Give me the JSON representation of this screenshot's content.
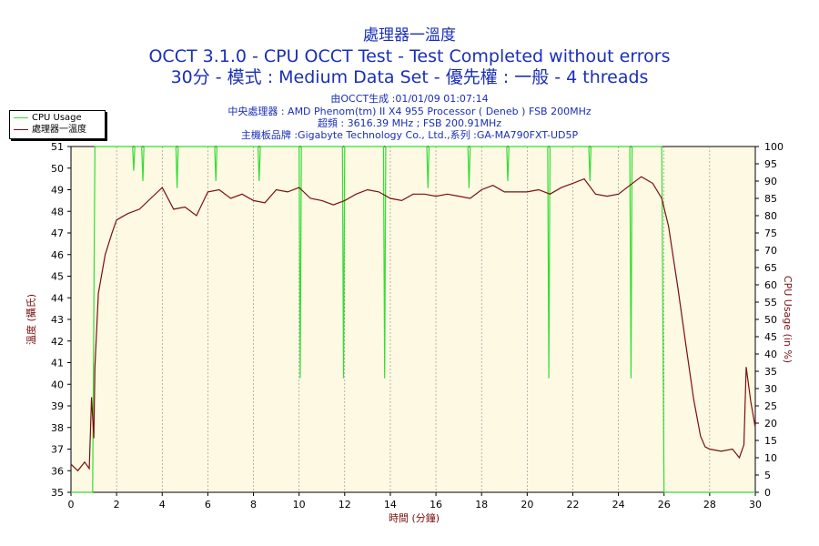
{
  "header": {
    "chart_title": "處理器一溫度",
    "test_line": "OCCT 3.1.0 - CPU OCCT Test - Test Completed without errors",
    "mode_line": "30分 - 模式 : Medium Data Set - 優先權 : 一般 - 4 threads"
  },
  "info": {
    "generated": "由OCCT生成 :01/01/09 01:07:14",
    "cpu": "中央處理器 : AMD Phenom(tm) II X4 955 Processor ( Deneb ) FSB 200MHz",
    "clock": "超頻 : 3616.39 MHz ; FSB 200.91MHz",
    "board": "主機板品牌 :Gigabyte Technology Co., Ltd.,系列 :GA-MA790FXT-UD5P"
  },
  "colors": {
    "plot_bg": "#fdf9e3",
    "cpu_usage": "#33dd33",
    "temperature": "#7a0f0f",
    "title": "#1a2fb8",
    "axis_text": "#7a1010"
  },
  "chart_data": {
    "type": "line",
    "xlabel": "時間 (分鐘)",
    "ylabel_left": "溫度 (攝氏)",
    "ylabel_right": "CPU Usage (in %)",
    "xlim": [
      0,
      30
    ],
    "ylim_left": [
      35,
      51
    ],
    "ylim_right": [
      0,
      100
    ],
    "x_ticks": [
      0,
      2,
      4,
      6,
      8,
      10,
      12,
      14,
      16,
      18,
      20,
      22,
      24,
      26,
      28,
      30
    ],
    "y_ticks_left": [
      35,
      36,
      37,
      38,
      39,
      40,
      41,
      42,
      43,
      44,
      45,
      46,
      47,
      48,
      49,
      50,
      51
    ],
    "y_ticks_right": [
      0,
      5,
      10,
      15,
      20,
      25,
      30,
      35,
      40,
      45,
      50,
      55,
      60,
      65,
      70,
      75,
      80,
      85,
      90,
      95,
      100
    ],
    "grid": "vertical dashed every 2 min",
    "legend_position": "top-left",
    "series": [
      {
        "name": "CPU Usage",
        "axis": "right",
        "x": [
          0,
          0.9,
          0.95,
          1.05,
          1.1,
          2.7,
          2.75,
          2.8,
          3.1,
          3.15,
          3.2,
          4.6,
          4.65,
          4.7,
          6.3,
          6.35,
          6.4,
          8.2,
          8.25,
          8.3,
          10.0,
          10.05,
          10.1,
          11.9,
          11.95,
          12.0,
          13.7,
          13.75,
          13.8,
          15.6,
          15.65,
          15.7,
          17.4,
          17.45,
          17.5,
          19.1,
          19.15,
          19.2,
          20.9,
          20.95,
          21.0,
          22.7,
          22.75,
          22.8,
          24.5,
          24.55,
          24.6,
          25.9,
          26.0,
          26.05,
          30
        ],
        "values": [
          0,
          0,
          0,
          100,
          100,
          100,
          93,
          100,
          100,
          90,
          100,
          100,
          88,
          100,
          100,
          90,
          100,
          100,
          90,
          100,
          100,
          33,
          100,
          100,
          33,
          100,
          100,
          33,
          100,
          100,
          88,
          100,
          100,
          88,
          100,
          100,
          90,
          100,
          100,
          33,
          100,
          100,
          90,
          100,
          100,
          33,
          100,
          100,
          0,
          0,
          0
        ]
      },
      {
        "name": "處理器一溫度",
        "axis": "left",
        "x": [
          0,
          0.3,
          0.6,
          0.8,
          0.9,
          1.0,
          1.05,
          1.2,
          1.5,
          1.8,
          2.0,
          2.5,
          3.0,
          3.5,
          4.0,
          4.5,
          5.0,
          5.5,
          6.0,
          6.5,
          7.0,
          7.5,
          8.0,
          8.5,
          9.0,
          9.5,
          10.0,
          10.5,
          11.0,
          11.5,
          12.0,
          12.5,
          13.0,
          13.5,
          14.0,
          14.5,
          15.0,
          15.5,
          16.0,
          16.5,
          17.0,
          17.5,
          18.0,
          18.5,
          19.0,
          19.5,
          20.0,
          20.5,
          21.0,
          21.5,
          22.0,
          22.5,
          23.0,
          23.5,
          24.0,
          24.5,
          25.0,
          25.5,
          25.9,
          26.2,
          26.6,
          27.0,
          27.3,
          27.6,
          27.8,
          28.0,
          28.5,
          29.0,
          29.3,
          29.5,
          29.6,
          29.8,
          30.0
        ],
        "values": [
          36.3,
          36.0,
          36.4,
          36.1,
          39.4,
          37.5,
          40.8,
          44.2,
          46.0,
          47.0,
          47.6,
          47.9,
          48.1,
          48.6,
          49.1,
          48.1,
          48.2,
          47.8,
          48.9,
          49.0,
          48.6,
          48.8,
          48.5,
          48.4,
          49.0,
          48.9,
          49.1,
          48.6,
          48.5,
          48.3,
          48.5,
          48.8,
          49.0,
          48.9,
          48.6,
          48.5,
          48.8,
          48.8,
          48.7,
          48.8,
          48.7,
          48.6,
          49.0,
          49.2,
          48.9,
          48.9,
          48.9,
          49.0,
          48.8,
          49.1,
          49.3,
          49.5,
          48.8,
          48.7,
          48.8,
          49.2,
          49.6,
          49.3,
          48.6,
          47.3,
          44.5,
          41.5,
          39.3,
          37.6,
          37.1,
          37.0,
          36.9,
          37.0,
          36.6,
          37.2,
          40.8,
          39.2,
          38.0
        ]
      }
    ]
  }
}
